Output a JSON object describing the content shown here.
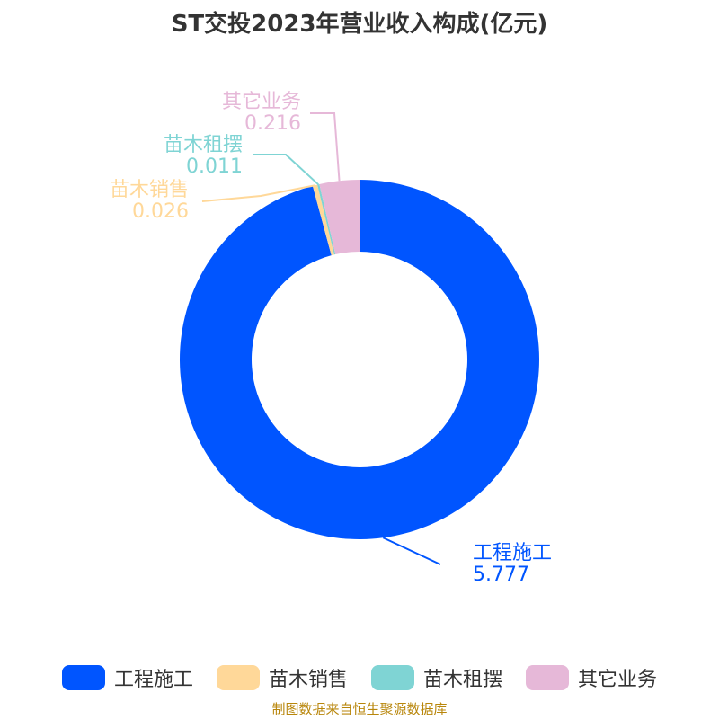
{
  "chart_data": {
    "type": "pie",
    "title": "ST交投2023年营业收入构成(亿元)",
    "categories": [
      "工程施工",
      "苗木销售",
      "苗木租摆",
      "其它业务"
    ],
    "values": [
      5.777,
      0.026,
      0.011,
      0.216
    ],
    "value_labels": [
      "5.777",
      "0.026",
      "0.011",
      "0.216"
    ],
    "colors": [
      "#0055ff",
      "#ffd899",
      "#7fd4d4",
      "#e6b8d8"
    ],
    "donut": true,
    "legend_position": "bottom"
  },
  "source_note": "制图数据来自恒生聚源数据库"
}
